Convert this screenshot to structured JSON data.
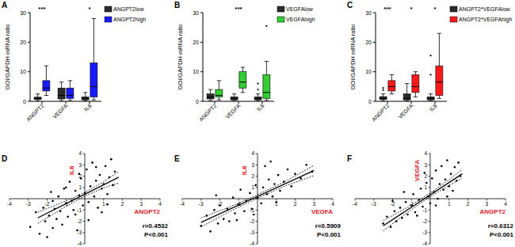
{
  "chart_data": [
    {
      "type": "box",
      "panel": "A",
      "y_label": "GOI/GAPDH mRNA ratio",
      "categories": [
        "ANGPT2",
        "VEGFA",
        "IL8"
      ],
      "ylim": [
        0,
        30
      ],
      "yticks": [
        0,
        10,
        20,
        30
      ],
      "legend": "right",
      "series": [
        {
          "name": "ANGPT2low",
          "color": "#2b2b2b",
          "boxes": [
            {
              "min": 0.2,
              "q1": 0.6,
              "median": 1,
              "q3": 1.4,
              "max": 2.5
            },
            {
              "min": 0.2,
              "q1": 0.8,
              "median": 2,
              "q3": 4.5,
              "max": 6.5
            },
            {
              "min": 0.2,
              "q1": 0.5,
              "median": 1,
              "q3": 1.5,
              "max": 3
            }
          ]
        },
        {
          "name": "ANGPT2high",
          "color": "#1a1aff",
          "boxes": [
            {
              "min": 2,
              "q1": 3.5,
              "median": 4.5,
              "q3": 7,
              "max": 12
            },
            {
              "min": 0.3,
              "q1": 1,
              "median": 2,
              "q3": 4.5,
              "max": 7
            },
            {
              "min": 0.5,
              "q1": 1.5,
              "median": 5,
              "q3": 13,
              "max": 28
            }
          ]
        }
      ],
      "annotations": [
        {
          "text": "***",
          "category": 0
        },
        {
          "text": "*",
          "category": 2
        }
      ]
    },
    {
      "type": "box",
      "panel": "B",
      "y_label": "GOI/GAPDH mRNA ratio",
      "categories": [
        "ANGPT2",
        "VEGFA",
        "IL8"
      ],
      "ylim": [
        0,
        30
      ],
      "yticks": [
        0,
        10,
        20,
        30
      ],
      "legend": "right",
      "series": [
        {
          "name": "VEGFAlow",
          "color": "#2b2b2b",
          "boxes": [
            {
              "min": 0.2,
              "q1": 0.8,
              "median": 1.5,
              "q3": 2.5,
              "max": 4
            },
            {
              "min": 0.2,
              "q1": 0.5,
              "median": 1,
              "q3": 1.5,
              "max": 2.5
            },
            {
              "min": 0.2,
              "q1": 0.5,
              "median": 1,
              "q3": 1.5,
              "max": 2.5,
              "outliers": [
                4,
                6
              ]
            }
          ]
        },
        {
          "name": "VEGFAhigh",
          "color": "#33cc33",
          "boxes": [
            {
              "min": 0.5,
              "q1": 1.5,
              "median": 2,
              "q3": 4,
              "max": 7
            },
            {
              "min": 3,
              "q1": 4.5,
              "median": 6.5,
              "q3": 10,
              "max": 11.5
            },
            {
              "min": 0.3,
              "q1": 1,
              "median": 3,
              "q3": 9,
              "max": 13.5,
              "outliers": [
                25.5
              ]
            }
          ]
        }
      ],
      "annotations": [
        {
          "text": "***",
          "category": 1
        }
      ]
    },
    {
      "type": "box",
      "panel": "C",
      "y_label": "GOI/GAPDH mRNA ratio",
      "categories": [
        "ANGPT2",
        "VEGFA",
        "IL8"
      ],
      "ylim": [
        0,
        30
      ],
      "yticks": [
        0,
        10,
        20,
        30
      ],
      "legend": "right",
      "series": [
        {
          "name": "ANGPT2*VEGFAlow",
          "color": "#2b2b2b",
          "boxes": [
            {
              "min": 0.2,
              "q1": 0.6,
              "median": 1,
              "q3": 1.6,
              "max": 2.5,
              "outliers": [
                3.8,
                4.5
              ]
            },
            {
              "min": 0.1,
              "q1": 0.5,
              "median": 1,
              "q3": 2.5,
              "max": 6
            },
            {
              "min": 0.1,
              "q1": 0.5,
              "median": 1,
              "q3": 1.5,
              "max": 2.5,
              "outliers": [
                9,
                15.5
              ]
            }
          ]
        },
        {
          "name": "ANGPT2*VEGFAhigh",
          "color": "#ff1a1a",
          "boxes": [
            {
              "min": 2.5,
              "q1": 3.5,
              "median": 5,
              "q3": 7,
              "max": 9
            },
            {
              "min": 1.5,
              "q1": 3,
              "median": 5,
              "q3": 9,
              "max": 10
            },
            {
              "min": 1,
              "q1": 2,
              "median": 6.5,
              "q3": 12,
              "max": 23
            }
          ]
        }
      ],
      "annotations": [
        {
          "text": "***",
          "category": 0
        },
        {
          "text": "*",
          "category": 1
        },
        {
          "text": "*",
          "category": 2
        }
      ]
    },
    {
      "type": "scatter",
      "panel": "D",
      "x_label": "ANGPT2",
      "y_label": "IL8",
      "color": "#000000",
      "marker": "circle",
      "xlim": [
        -4,
        4
      ],
      "ylim": [
        -4,
        4
      ],
      "xticks": [
        -4,
        -3,
        -2,
        -1,
        1,
        2,
        3,
        4
      ],
      "yticks": [
        -4,
        -3,
        -2,
        -1,
        1,
        2,
        3,
        4
      ],
      "x": [
        -2.9,
        -2.6,
        -2.4,
        -2.2,
        -2.1,
        -1.9,
        -1.8,
        -1.7,
        -1.6,
        -1.5,
        -1.4,
        -1.3,
        -1.2,
        -1.1,
        -1.0,
        -0.9,
        -0.8,
        -0.7,
        -0.6,
        -0.5,
        -0.4,
        -0.3,
        -0.2,
        -0.1,
        0.0,
        0.1,
        0.2,
        0.3,
        0.4,
        0.5,
        0.6,
        0.7,
        0.8,
        0.9,
        1.0,
        1.1,
        1.2,
        1.3,
        1.4,
        1.5,
        1.6,
        -1.0,
        -0.5,
        0.2,
        0.6,
        -1.7,
        0.9,
        -0.3,
        -2.0,
        1.2
      ],
      "y": [
        -2.5,
        -1.2,
        -3.1,
        -0.8,
        -2.0,
        -1.5,
        0.6,
        -2.6,
        -0.9,
        -1.8,
        0.2,
        -1.1,
        -2.3,
        0.9,
        -0.4,
        -1.6,
        1.5,
        -0.2,
        -1.0,
        0.7,
        -2.8,
        0.3,
        1.8,
        -0.6,
        0.5,
        2.6,
        -0.3,
        1.1,
        3.2,
        0.2,
        1.6,
        -0.8,
        2.1,
        0.9,
        1.3,
        2.9,
        0.4,
        1.9,
        3.5,
        1.2,
        2.4,
        1.0,
        -1.4,
        -1.9,
        2.8,
        -0.2,
        -1.2,
        2.2,
        -3.4,
        -0.5
      ],
      "fit": {
        "x": [
          -2.5,
          1.8
        ],
        "y": [
          -1.7,
          1.9
        ]
      },
      "ci": {
        "x": [
          -2.5,
          -1,
          0,
          1,
          1.8
        ],
        "upper": [
          -1.2,
          -0.2,
          0.55,
          1.5,
          2.4
        ],
        "lower": [
          -2.2,
          -0.68,
          0.23,
          0.96,
          1.4
        ]
      },
      "annotations": [
        "r=0.4532",
        "P<0.001"
      ]
    },
    {
      "type": "scatter",
      "panel": "E",
      "x_label": "VEGFA",
      "y_label": "IL8",
      "color": "#000000",
      "marker": "circle",
      "xlim": [
        -4,
        4
      ],
      "ylim": [
        -4,
        4
      ],
      "xticks": [
        -4,
        -3,
        -2,
        -1,
        1,
        2,
        3,
        4
      ],
      "yticks": [
        -4,
        -3,
        -2,
        -1,
        1,
        2,
        3,
        4
      ],
      "x": [
        -3.0,
        -2.7,
        -2.5,
        -2.3,
        -2.1,
        -2.0,
        -1.8,
        -1.6,
        -1.5,
        -1.3,
        -1.2,
        -1.0,
        -0.9,
        -0.7,
        -0.6,
        -0.4,
        -0.3,
        -0.1,
        0.0,
        0.2,
        0.3,
        0.5,
        0.6,
        0.8,
        0.9,
        1.1,
        1.2,
        1.4,
        1.6,
        1.8,
        2.0,
        2.3,
        2.6,
        2.9,
        -1.1,
        -0.2,
        0.4,
        1.0,
        -2.2,
        0.7
      ],
      "y": [
        -2.4,
        -1.5,
        -2.9,
        -1.0,
        -2.2,
        -0.6,
        -1.8,
        -0.9,
        -2.0,
        0.1,
        -1.3,
        -0.5,
        0.8,
        -1.1,
        -0.2,
        0.5,
        -0.9,
        1.2,
        0.1,
        -0.4,
        1.0,
        0.4,
        1.7,
        0.2,
        1.3,
        2.1,
        0.7,
        1.5,
        2.6,
        1.1,
        2.2,
        1.8,
        3.0,
        2.4,
        -1.9,
        -1.4,
        2.9,
        -0.3,
        0.3,
        3.3
      ],
      "fit": {
        "x": [
          -3,
          3
        ],
        "y": [
          -2.1,
          2.5
        ]
      },
      "ci": {
        "x": [
          -3,
          -1.5,
          0,
          1.5,
          3
        ],
        "upper": [
          -1.7,
          -0.75,
          0.35,
          1.55,
          2.95
        ],
        "lower": [
          -2.5,
          -1.15,
          0.05,
          1.15,
          2.05
        ]
      },
      "annotations": [
        "r=0.5909",
        "P<0.001"
      ]
    },
    {
      "type": "scatter",
      "panel": "F",
      "x_label": "ANGPT2",
      "y_label": "VEGFA",
      "color": "#000000",
      "marker": "circle",
      "xlim": [
        -4,
        4
      ],
      "ylim": [
        -4,
        4
      ],
      "xticks": [
        -4,
        -3,
        -2,
        -1,
        1,
        2,
        3,
        4
      ],
      "yticks": [
        -4,
        -3,
        -2,
        -1,
        1,
        2,
        3,
        4
      ],
      "x": [
        -2.5,
        -2.3,
        -2.1,
        -1.9,
        -1.8,
        -1.6,
        -1.5,
        -1.3,
        -1.2,
        -1.0,
        -0.9,
        -0.8,
        -0.6,
        -0.5,
        -0.4,
        -0.2,
        -0.1,
        0.0,
        0.1,
        0.2,
        0.3,
        0.4,
        0.5,
        0.6,
        0.7,
        0.8,
        0.9,
        1.0,
        1.1,
        1.2,
        1.3,
        1.4,
        1.5,
        1.6,
        -1.4,
        -0.7,
        -0.3,
        0.3,
        0.9,
        -2.0
      ],
      "y": [
        -2.2,
        -1.6,
        -2.5,
        -1.1,
        -2.0,
        -0.8,
        -1.7,
        -0.3,
        -1.4,
        -0.6,
        0.4,
        -1.2,
        -0.1,
        0.9,
        -0.7,
        1.4,
        0.2,
        -0.4,
        1.8,
        0.6,
        2.5,
        0.0,
        1.3,
        2.9,
        0.8,
        1.7,
        3.4,
        1.1,
        2.2,
        0.7,
        2.8,
        1.6,
        3.2,
        2.0,
        0.6,
        -1.5,
        2.3,
        -0.6,
        0.2,
        -0.2
      ],
      "fit": {
        "x": [
          -2.5,
          1.7
        ],
        "y": [
          -2.4,
          2.2
        ]
      },
      "ci": {
        "x": [
          -2.5,
          -1,
          0,
          1,
          1.7
        ],
        "upper": [
          -1.95,
          -0.56,
          0.5,
          1.68,
          2.6
        ],
        "lower": [
          -2.85,
          -0.96,
          0.18,
          1.18,
          1.8
        ]
      },
      "annotations": [
        "r=0.6312",
        "P<0.001"
      ]
    }
  ]
}
